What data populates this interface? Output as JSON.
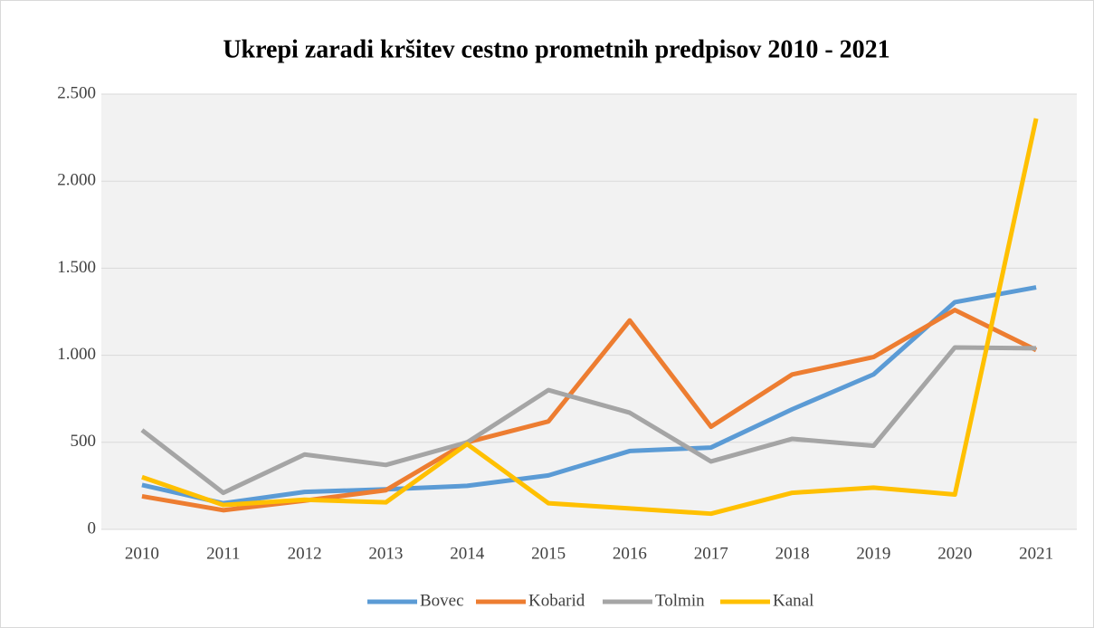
{
  "chart_data": {
    "type": "line",
    "title": "Ukrepi zaradi kršitev cestno prometnih predpisov 2010 - 2021",
    "categories": [
      "2010",
      "2011",
      "2012",
      "2013",
      "2014",
      "2015",
      "2016",
      "2017",
      "2018",
      "2019",
      "2020",
      "2021"
    ],
    "series": [
      {
        "name": "Bovec",
        "color": "#5b9bd5",
        "values": [
          255,
          150,
          215,
          230,
          250,
          310,
          450,
          470,
          690,
          890,
          1305,
          1390
        ]
      },
      {
        "name": "Kobarid",
        "color": "#ed7d31",
        "values": [
          190,
          110,
          165,
          225,
          500,
          620,
          1200,
          590,
          890,
          990,
          1260,
          1030
        ]
      },
      {
        "name": "Tolmin",
        "color": "#a5a5a5",
        "values": [
          570,
          210,
          430,
          370,
          500,
          800,
          670,
          390,
          520,
          480,
          1045,
          1040
        ]
      },
      {
        "name": "Kanal",
        "color": "#ffc000",
        "values": [
          300,
          140,
          170,
          155,
          490,
          150,
          120,
          90,
          210,
          240,
          200,
          2360
        ]
      }
    ],
    "ylim": [
      0,
      2500
    ],
    "yticks": [
      0,
      500,
      {
        "value": 1000,
        "label": "1.000"
      },
      {
        "value": 1500,
        "label": "1.500"
      },
      {
        "value": 2000,
        "label": "2.000"
      },
      {
        "value": 2500,
        "label": "2.500"
      }
    ],
    "grid": true,
    "legend": "bottom"
  }
}
